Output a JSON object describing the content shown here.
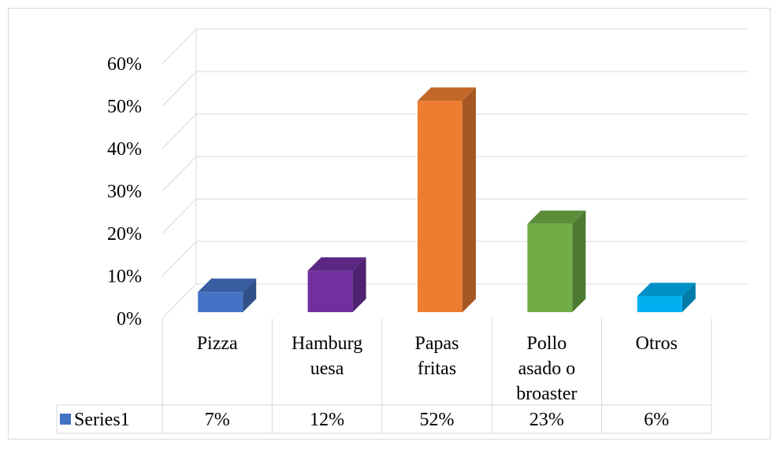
{
  "chart_data": {
    "type": "bar",
    "style": "3d-column",
    "categories": [
      "Pizza",
      "Hamburguesa",
      "Papas fritas",
      "Pollo asado o broaster",
      "Otros"
    ],
    "category_label_lines": [
      [
        "Pizza"
      ],
      [
        "Hamburg",
        "uesa"
      ],
      [
        "Papas",
        "fritas"
      ],
      [
        "Pollo",
        "asado o",
        "broaster"
      ],
      [
        "Otros"
      ]
    ],
    "series": [
      {
        "name": "Series1",
        "values": [
          0.07,
          0.12,
          0.52,
          0.23,
          0.06
        ],
        "value_labels": [
          "7%",
          "12%",
          "52%",
          "23%",
          "6%"
        ]
      }
    ],
    "bar_colors": [
      "#4472c4",
      "#7030a0",
      "#ed7d31",
      "#70ad47",
      "#00b0f0"
    ],
    "y_ticks": [
      "0%",
      "10%",
      "20%",
      "30%",
      "40%",
      "50%",
      "60%"
    ],
    "ylim": [
      0,
      0.6
    ],
    "grid": true,
    "legend": "data-table",
    "legend_marker_color": "#4472c4",
    "title": "",
    "xlabel": "",
    "ylabel": ""
  }
}
